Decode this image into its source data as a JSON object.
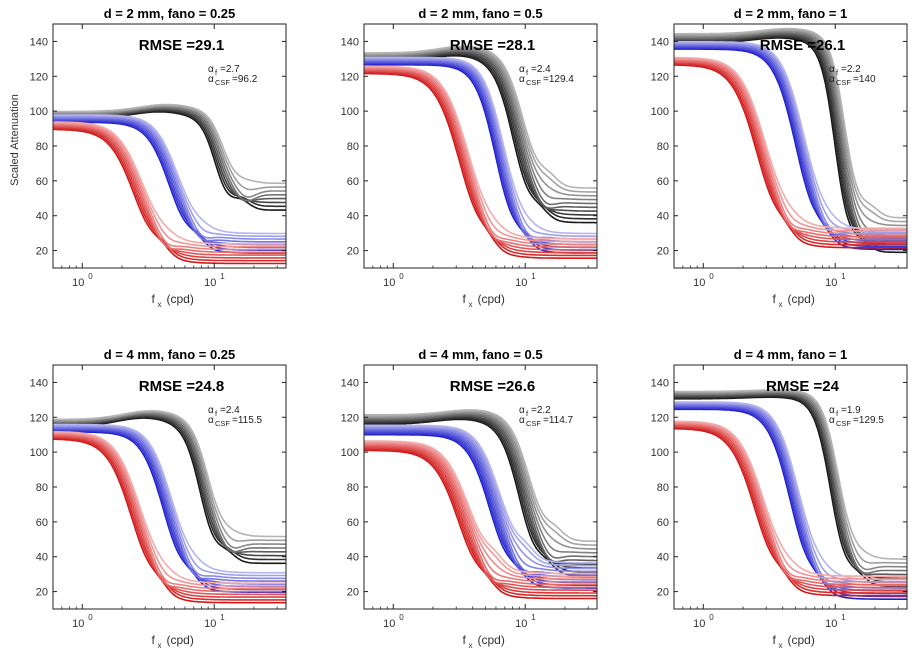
{
  "chart_data": [
    {
      "type": "line",
      "title": "d = 2 mm, fano = 0.25",
      "rmse_label": "RMSE =29.1",
      "alpha_f": "2.7",
      "alpha_csf": "96.2",
      "xlabel": "f",
      "xlabel_sub": "x",
      "xlabel_unit": "(cpd)",
      "ylabel": "Scaled Attenuation",
      "xscale": "log",
      "xlim": [
        0.6,
        35
      ],
      "ylim": [
        10,
        150
      ],
      "yticks": [
        20,
        40,
        60,
        80,
        100,
        120,
        140
      ],
      "xtick_base": "10",
      "xtick_exponents": [
        "0",
        "1"
      ],
      "series": [
        {
          "name": "gray",
          "start": 98,
          "bump": 4,
          "f_half": 11,
          "tail": 52,
          "steep": 8,
          "n": 8
        },
        {
          "name": "blue",
          "start": 96,
          "bump": 0,
          "f_half": 5,
          "tail": 25,
          "steep": 5,
          "n": 8
        },
        {
          "name": "red",
          "start": 92,
          "bump": 0,
          "f_half": 2.7,
          "tail": 19,
          "steep": 4.5,
          "n": 8
        }
      ]
    },
    {
      "type": "line",
      "title": "d = 2 mm, fano = 0.5",
      "rmse_label": "RMSE =28.1",
      "alpha_f": "2.4",
      "alpha_csf": "129.4",
      "xlabel": "f",
      "xlabel_sub": "x",
      "xlabel_unit": "(cpd)",
      "xscale": "log",
      "xlim": [
        0.6,
        35
      ],
      "ylim": [
        10,
        150
      ],
      "yticks": [
        20,
        40,
        60,
        80,
        100,
        120,
        140
      ],
      "xtick_base": "10",
      "xtick_exponents": [
        "0",
        "1"
      ],
      "series": [
        {
          "name": "gray",
          "start": 131,
          "bump": 4,
          "f_half": 9,
          "tail": 47,
          "steep": 6,
          "n": 10
        },
        {
          "name": "blue",
          "start": 129,
          "bump": 0,
          "f_half": 6.5,
          "tail": 25,
          "steep": 5.5,
          "n": 8
        },
        {
          "name": "red",
          "start": 124,
          "bump": 0,
          "f_half": 3.5,
          "tail": 22,
          "steep": 4.5,
          "n": 8
        }
      ]
    },
    {
      "type": "line",
      "title": "d = 2 mm, fano = 1",
      "rmse_label": "RMSE =26.1",
      "alpha_f": "2.2",
      "alpha_csf": "140",
      "xlabel": "f",
      "xlabel_sub": "x",
      "xlabel_unit": "(cpd)",
      "xscale": "log",
      "xlim": [
        0.6,
        35
      ],
      "ylim": [
        10,
        150
      ],
      "yticks": [
        20,
        40,
        60,
        80,
        100,
        120,
        140
      ],
      "xtick_base": "10",
      "xtick_exponents": [
        "0",
        "1"
      ],
      "series": [
        {
          "name": "gray",
          "start": 142,
          "bump": 3,
          "f_half": 11,
          "tail": 30,
          "steep": 8,
          "n": 10
        },
        {
          "name": "blue",
          "start": 138,
          "bump": 0,
          "f_half": 5.5,
          "tail": 27,
          "steep": 5,
          "n": 8
        },
        {
          "name": "red",
          "start": 129,
          "bump": 0,
          "f_half": 2.8,
          "tail": 28,
          "steep": 4.5,
          "n": 8
        }
      ]
    },
    {
      "type": "line",
      "title": "d = 4 mm, fano = 0.25",
      "rmse_label": "RMSE =24.8",
      "alpha_f": "2.4",
      "alpha_csf": "115.5",
      "xlabel": "f",
      "xlabel_sub": "x",
      "xlabel_unit": "(cpd)",
      "xscale": "log",
      "xlim": [
        0.6,
        35
      ],
      "ylim": [
        10,
        150
      ],
      "yticks": [
        20,
        40,
        60,
        80,
        100,
        120,
        140
      ],
      "xtick_base": "10",
      "xtick_exponents": [
        "0",
        "1"
      ],
      "series": [
        {
          "name": "gray",
          "start": 117,
          "bump": 5,
          "f_half": 8.5,
          "tail": 45,
          "steep": 7,
          "n": 8
        },
        {
          "name": "blue",
          "start": 114,
          "bump": 0,
          "f_half": 4.5,
          "tail": 26,
          "steep": 5,
          "n": 8
        },
        {
          "name": "red",
          "start": 110,
          "bump": 0,
          "f_half": 2.6,
          "tail": 20,
          "steep": 4.5,
          "n": 8
        }
      ]
    },
    {
      "type": "line",
      "title": "d = 4 mm, fano = 0.5",
      "rmse_label": "RMSE =26.6",
      "alpha_f": "2.2",
      "alpha_csf": "114.7",
      "xlabel": "f",
      "xlabel_sub": "x",
      "xlabel_unit": "(cpd)",
      "xscale": "log",
      "xlim": [
        0.6,
        35
      ],
      "ylim": [
        10,
        150
      ],
      "yticks": [
        20,
        40,
        60,
        80,
        100,
        120,
        140
      ],
      "xtick_base": "10",
      "xtick_exponents": [
        "0",
        "1"
      ],
      "series": [
        {
          "name": "gray",
          "start": 119,
          "bump": 3,
          "f_half": 10,
          "tail": 40,
          "steep": 6,
          "n": 10
        },
        {
          "name": "blue",
          "start": 113,
          "bump": 0,
          "f_half": 6,
          "tail": 30,
          "steep": 5,
          "n": 10
        },
        {
          "name": "red",
          "start": 104,
          "bump": 0,
          "f_half": 3.5,
          "tail": 24,
          "steep": 4.5,
          "n": 10
        }
      ]
    },
    {
      "type": "line",
      "title": "d = 4 mm, fano = 1",
      "rmse_label": "RMSE =24",
      "alpha_f": "1.9",
      "alpha_csf": "129.5",
      "xlabel": "f",
      "xlabel_sub": "x",
      "xlabel_unit": "(cpd)",
      "xscale": "log",
      "xlim": [
        0.6,
        35
      ],
      "ylim": [
        10,
        150
      ],
      "yticks": [
        20,
        40,
        60,
        80,
        100,
        120,
        140
      ],
      "xtick_base": "10",
      "xtick_exponents": [
        "0",
        "1"
      ],
      "series": [
        {
          "name": "gray",
          "start": 133,
          "bump": 1,
          "f_half": 10,
          "tail": 32,
          "steep": 7,
          "n": 8
        },
        {
          "name": "blue",
          "start": 127,
          "bump": 0,
          "f_half": 5,
          "tail": 22,
          "steep": 5,
          "n": 8
        },
        {
          "name": "red",
          "start": 116,
          "bump": 0,
          "f_half": 2.7,
          "tail": 24,
          "steep": 4.5,
          "n": 8
        }
      ]
    }
  ],
  "colors": {
    "gray_dark": "#1a1a1a",
    "gray_light": "#b4b4b4",
    "blue_dark": "#2222cc",
    "blue_light": "#b4b4f0",
    "red_dark": "#d01818",
    "red_light": "#f4aaaa"
  }
}
